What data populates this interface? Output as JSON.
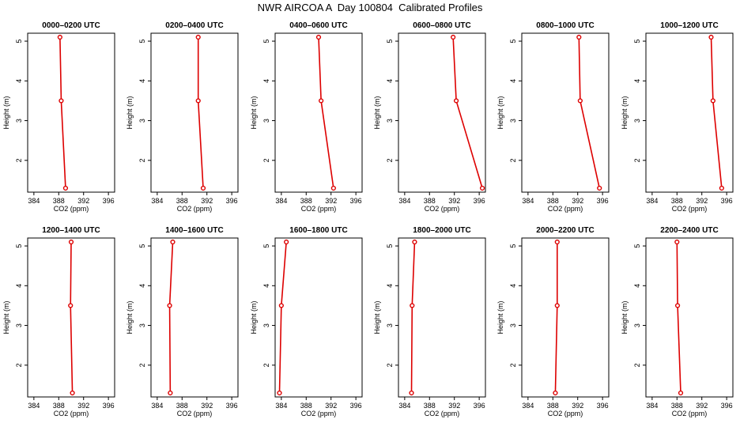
{
  "title": "NWR AIRCOA A  Day 100804  Calibrated Profiles",
  "colors": {
    "series": "#dd0000",
    "axis": "#000000"
  },
  "chart_data": [
    {
      "type": "line",
      "title": "0000–0200 UTC",
      "xlabel": "CO2 (ppm)",
      "ylabel": "Height (m)",
      "xlim": [
        383,
        397
      ],
      "ylim": [
        1.2,
        5.2
      ],
      "xticks": [
        384,
        388,
        392,
        396
      ],
      "yticks": [
        2,
        3,
        4,
        5
      ],
      "x": [
        389.1,
        388.4,
        388.2
      ],
      "y": [
        1.3,
        3.5,
        5.1
      ]
    },
    {
      "type": "line",
      "title": "0200–0400 UTC",
      "xlabel": "CO2 (ppm)",
      "ylabel": "Height (m)",
      "xlim": [
        383,
        397
      ],
      "ylim": [
        1.2,
        5.2
      ],
      "xticks": [
        384,
        388,
        392,
        396
      ],
      "yticks": [
        2,
        3,
        4,
        5
      ],
      "x": [
        391.4,
        390.6,
        390.6
      ],
      "y": [
        1.3,
        3.5,
        5.1
      ]
    },
    {
      "type": "line",
      "title": "0400–0600 UTC",
      "xlabel": "CO2 (ppm)",
      "ylabel": "Height (m)",
      "xlim": [
        383,
        397
      ],
      "ylim": [
        1.2,
        5.2
      ],
      "xticks": [
        384,
        388,
        392,
        396
      ],
      "yticks": [
        2,
        3,
        4,
        5
      ],
      "x": [
        392.4,
        390.4,
        390.0
      ],
      "y": [
        1.3,
        3.5,
        5.1
      ]
    },
    {
      "type": "line",
      "title": "0600–0800 UTC",
      "xlabel": "CO2 (ppm)",
      "ylabel": "Height (m)",
      "xlim": [
        383,
        397
      ],
      "ylim": [
        1.2,
        5.2
      ],
      "xticks": [
        384,
        388,
        392,
        396
      ],
      "yticks": [
        2,
        3,
        4,
        5
      ],
      "x": [
        396.5,
        392.3,
        391.8
      ],
      "y": [
        1.3,
        3.5,
        5.1
      ]
    },
    {
      "type": "line",
      "title": "0800–1000 UTC",
      "xlabel": "CO2 (ppm)",
      "ylabel": "Height (m)",
      "xlim": [
        383,
        397
      ],
      "ylim": [
        1.2,
        5.2
      ],
      "xticks": [
        384,
        388,
        392,
        396
      ],
      "yticks": [
        2,
        3,
        4,
        5
      ],
      "x": [
        395.5,
        392.4,
        392.2
      ],
      "y": [
        1.3,
        3.5,
        5.1
      ]
    },
    {
      "type": "line",
      "title": "1000–1200 UTC",
      "xlabel": "CO2 (ppm)",
      "ylabel": "Height (m)",
      "xlim": [
        383,
        397
      ],
      "ylim": [
        1.2,
        5.2
      ],
      "xticks": [
        384,
        388,
        392,
        396
      ],
      "yticks": [
        2,
        3,
        4,
        5
      ],
      "x": [
        395.2,
        393.8,
        393.5
      ],
      "y": [
        1.3,
        3.5,
        5.1
      ]
    },
    {
      "type": "line",
      "title": "1200–1400 UTC",
      "xlabel": "CO2 (ppm)",
      "ylabel": "Height (m)",
      "xlim": [
        383,
        397
      ],
      "ylim": [
        1.2,
        5.2
      ],
      "xticks": [
        384,
        388,
        392,
        396
      ],
      "yticks": [
        2,
        3,
        4,
        5
      ],
      "x": [
        390.2,
        389.9,
        390.0
      ],
      "y": [
        1.3,
        3.5,
        5.1
      ]
    },
    {
      "type": "line",
      "title": "1400–1600 UTC",
      "xlabel": "CO2 (ppm)",
      "ylabel": "Height (m)",
      "xlim": [
        383,
        397
      ],
      "ylim": [
        1.2,
        5.2
      ],
      "xticks": [
        384,
        388,
        392,
        396
      ],
      "yticks": [
        2,
        3,
        4,
        5
      ],
      "x": [
        386.1,
        386.0,
        386.5
      ],
      "y": [
        1.3,
        3.5,
        5.1
      ]
    },
    {
      "type": "line",
      "title": "1600–1800 UTC",
      "xlabel": "CO2 (ppm)",
      "ylabel": "Height (m)",
      "xlim": [
        383,
        397
      ],
      "ylim": [
        1.2,
        5.2
      ],
      "xticks": [
        384,
        388,
        392,
        396
      ],
      "yticks": [
        2,
        3,
        4,
        5
      ],
      "x": [
        383.7,
        384.0,
        384.8
      ],
      "y": [
        1.3,
        3.5,
        5.1
      ]
    },
    {
      "type": "line",
      "title": "1800–2000 UTC",
      "xlabel": "CO2 (ppm)",
      "ylabel": "Height (m)",
      "xlim": [
        383,
        397
      ],
      "ylim": [
        1.2,
        5.2
      ],
      "xticks": [
        384,
        388,
        392,
        396
      ],
      "yticks": [
        2,
        3,
        4,
        5
      ],
      "x": [
        385.1,
        385.2,
        385.6
      ],
      "y": [
        1.3,
        3.5,
        5.1
      ]
    },
    {
      "type": "line",
      "title": "2000–2200 UTC",
      "xlabel": "CO2 (ppm)",
      "ylabel": "Height (m)",
      "xlim": [
        383,
        397
      ],
      "ylim": [
        1.2,
        5.2
      ],
      "xticks": [
        384,
        388,
        392,
        396
      ],
      "yticks": [
        2,
        3,
        4,
        5
      ],
      "x": [
        388.4,
        388.7,
        388.7
      ],
      "y": [
        1.3,
        3.5,
        5.1
      ]
    },
    {
      "type": "line",
      "title": "2200–2400 UTC",
      "xlabel": "CO2 (ppm)",
      "ylabel": "Height (m)",
      "xlim": [
        383,
        397
      ],
      "ylim": [
        1.2,
        5.2
      ],
      "xticks": [
        384,
        388,
        392,
        396
      ],
      "yticks": [
        2,
        3,
        4,
        5
      ],
      "x": [
        388.6,
        388.1,
        388.0
      ],
      "y": [
        1.3,
        3.5,
        5.1
      ]
    }
  ]
}
